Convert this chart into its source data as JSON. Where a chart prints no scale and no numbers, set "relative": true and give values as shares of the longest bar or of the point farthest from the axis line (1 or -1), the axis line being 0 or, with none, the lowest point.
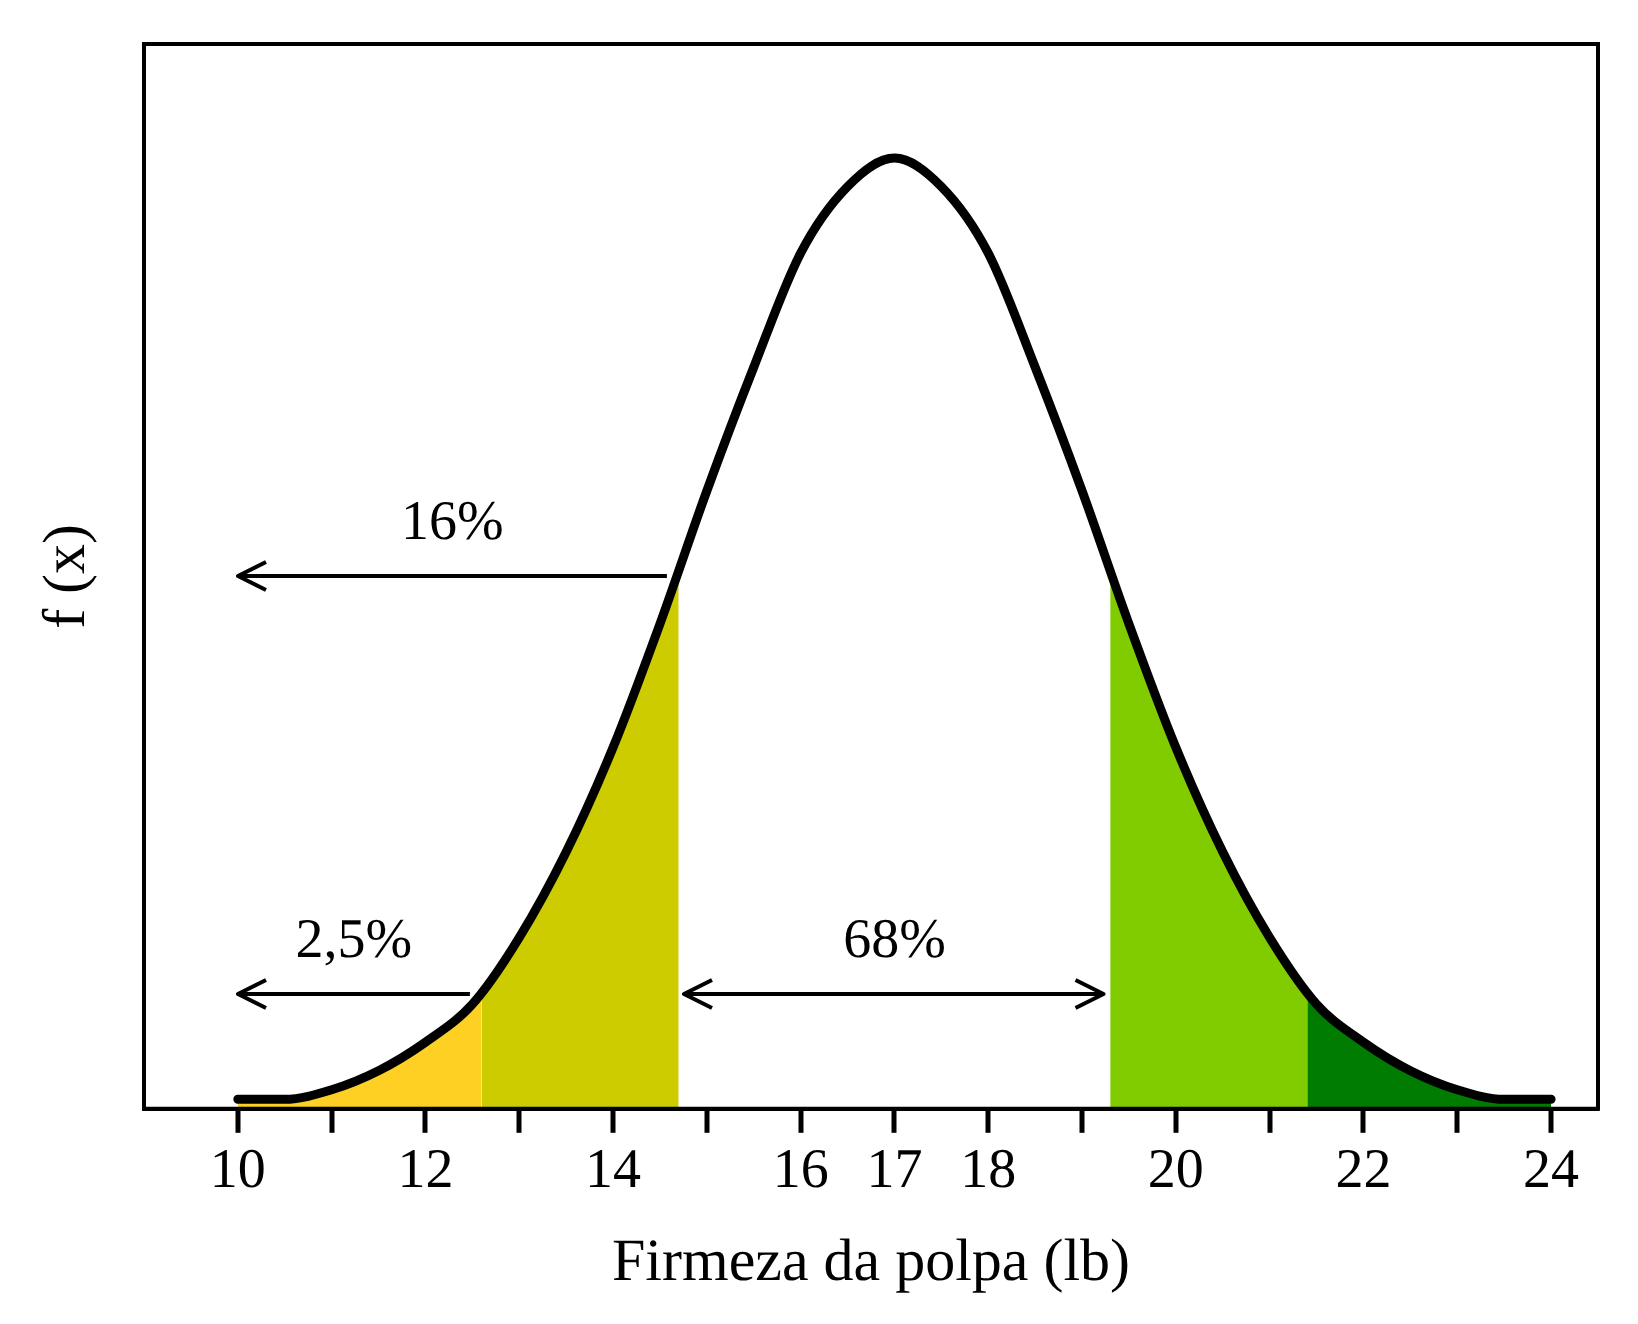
{
  "chart_data": {
    "type": "line",
    "relative": true,
    "xlabel": "Firmeza da polpa (lb)",
    "ylabel": "f (x)",
    "xlim": [
      9,
      24.5
    ],
    "xticks": [
      10,
      {
        "value": 11,
        "label": null
      },
      12,
      {
        "value": 13,
        "label": null
      },
      14,
      {
        "value": 15,
        "label": null
      },
      16,
      17,
      18,
      {
        "value": 19,
        "label": null
      },
      20,
      {
        "value": 21,
        "label": null
      },
      22,
      {
        "value": 23,
        "label": null
      },
      24
    ],
    "annotations": [
      "16%",
      "2,5%",
      "68%"
    ],
    "series": [
      {
        "type": "area",
        "color": "#fdd023",
        "x": [
          10,
          10.5,
          11,
          11.5,
          12,
          12.5,
          12.6
        ],
        "values": [
          0.01,
          0.01,
          0.02,
          0.04,
          0.07,
          0.11,
          0.12
        ]
      },
      {
        "type": "area",
        "color": "#cccc00",
        "x": [
          12.6,
          13,
          13.5,
          14,
          14.5,
          14.7
        ],
        "values": [
          0.12,
          0.18,
          0.27,
          0.38,
          0.51,
          0.56
        ]
      },
      {
        "type": "area",
        "color": "#80cc00",
        "x": [
          19.3,
          19.5,
          20,
          20.5,
          21,
          21.4
        ],
        "values": [
          0.56,
          0.51,
          0.38,
          0.27,
          0.18,
          0.12
        ]
      },
      {
        "type": "area",
        "color": "#007d00",
        "x": [
          21.4,
          21.5,
          22,
          22.5,
          23,
          23.5,
          24
        ],
        "values": [
          0.12,
          0.11,
          0.07,
          0.04,
          0.02,
          0.01,
          0.01
        ]
      },
      {
        "type": "line",
        "color": "#000000",
        "x": [
          10,
          10.5,
          11,
          11.5,
          12,
          12.5,
          13,
          13.5,
          14,
          14.5,
          15,
          15.5,
          16,
          16.5,
          17,
          17.5,
          18,
          18.5,
          19,
          19.5,
          20,
          20.5,
          21,
          21.5,
          22,
          22.5,
          23,
          23.5,
          24
        ],
        "values": [
          0.01,
          0.01,
          0.02,
          0.04,
          0.07,
          0.11,
          0.18,
          0.27,
          0.38,
          0.51,
          0.65,
          0.78,
          0.9,
          0.97,
          1,
          0.97,
          0.9,
          0.78,
          0.65,
          0.51,
          0.38,
          0.27,
          0.18,
          0.11,
          0.07,
          0.04,
          0.02,
          0.01,
          0.01
        ]
      }
    ]
  }
}
